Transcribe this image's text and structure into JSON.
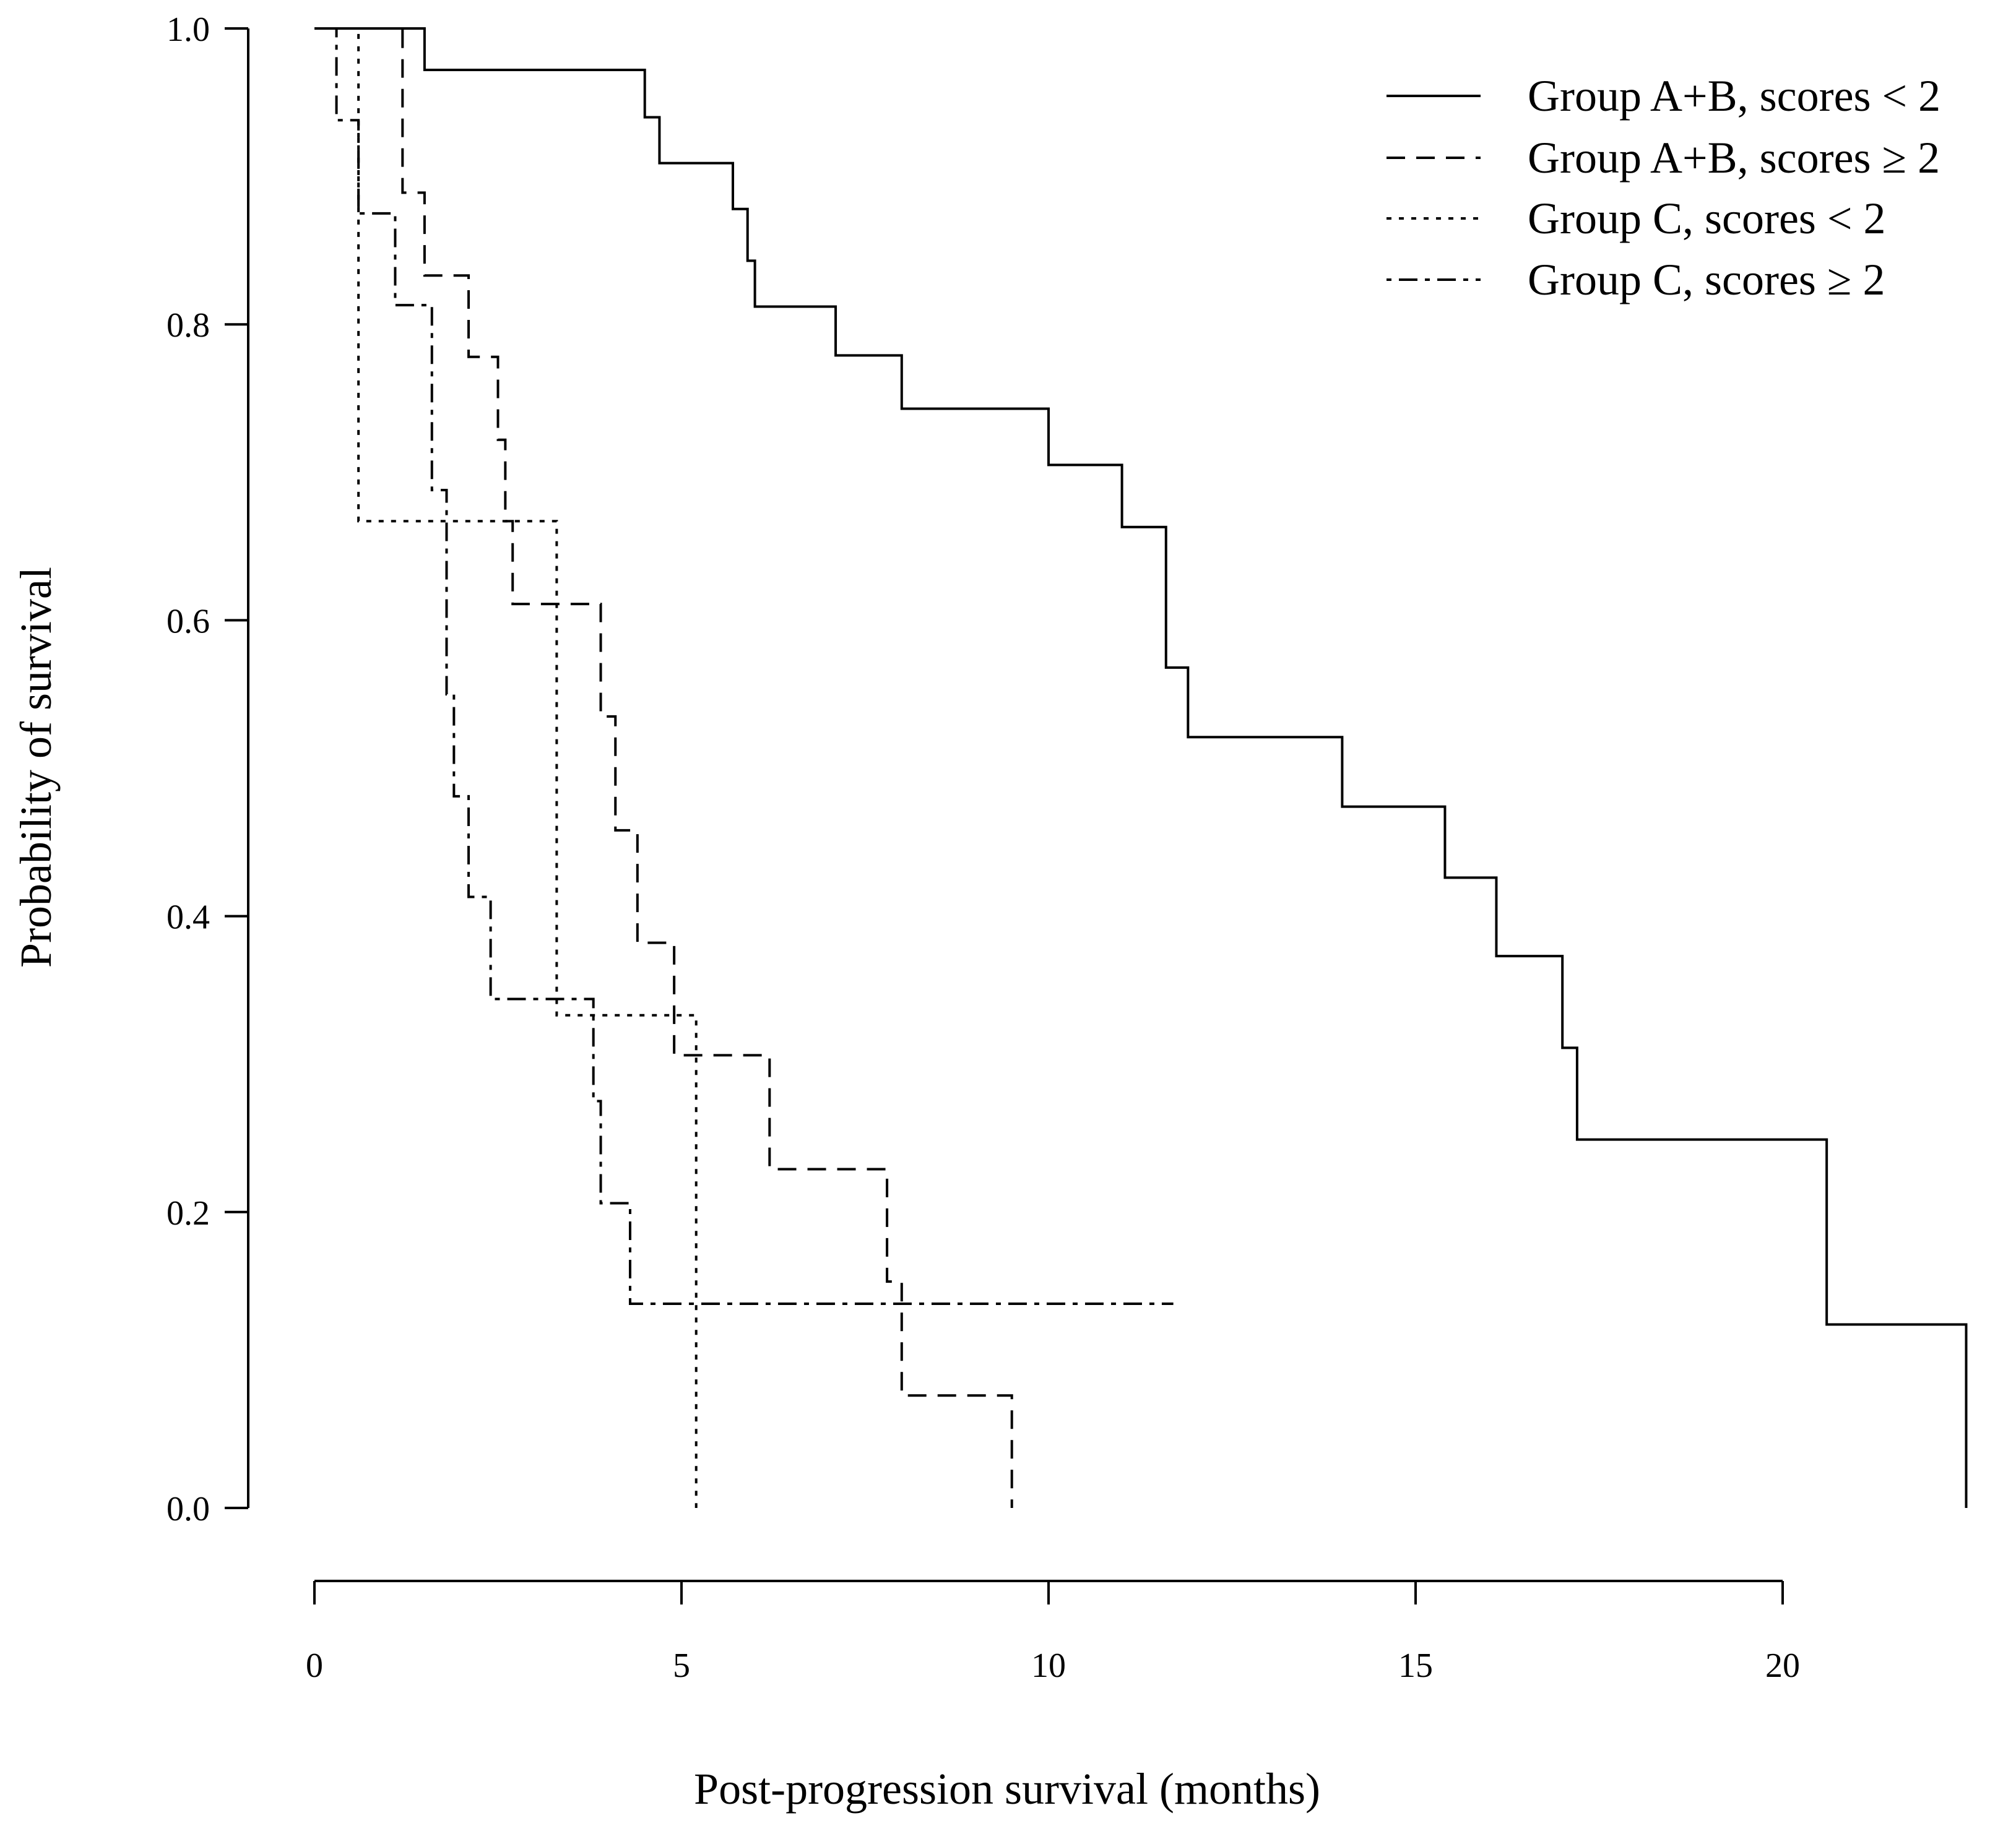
{
  "chart_data": {
    "type": "line",
    "subtype": "kaplan-meier step",
    "title": "",
    "xlabel": "Post-progression survival (months)",
    "ylabel": "Probability of survival",
    "xlim": [
      0,
      20
    ],
    "ylim": [
      0,
      1
    ],
    "x_ticks": [
      0,
      5,
      10,
      15,
      20
    ],
    "x_tick_labels": [
      "0",
      "5",
      "10",
      "15",
      "20"
    ],
    "y_ticks": [
      0,
      0.2,
      0.4,
      0.6,
      0.8,
      1.0
    ],
    "y_tick_labels": [
      "0.0",
      "0.2",
      "0.4",
      "0.6",
      "0.8",
      "1.0"
    ],
    "grid": false,
    "legend_position": "top-right",
    "colors": {
      "line": "#000000",
      "background": "#ffffff"
    },
    "series": [
      {
        "name": "Group A+B, scores < 2",
        "style": "solid",
        "steps": [
          [
            0,
            1.0
          ],
          [
            1.5,
            0.972
          ],
          [
            4.5,
            0.94
          ],
          [
            4.7,
            0.909
          ],
          [
            5.7,
            0.878
          ],
          [
            5.9,
            0.843
          ],
          [
            6.0,
            0.812
          ],
          [
            7.1,
            0.779
          ],
          [
            8.0,
            0.743
          ],
          [
            10.0,
            0.705
          ],
          [
            11.0,
            0.663
          ],
          [
            11.6,
            0.568
          ],
          [
            11.9,
            0.521
          ],
          [
            14.0,
            0.474
          ],
          [
            15.4,
            0.426
          ],
          [
            16.1,
            0.373
          ],
          [
            17.0,
            0.311
          ],
          [
            17.2,
            0.249
          ],
          [
            20.6,
            0.124
          ],
          [
            22.5,
            0.0
          ]
        ],
        "end_x": 22.5
      },
      {
        "name": "Group A+B, scores ≥ 2",
        "style": "dashed",
        "steps": [
          [
            0,
            1.0
          ],
          [
            1.2,
            0.889
          ],
          [
            1.5,
            0.833
          ],
          [
            2.1,
            0.778
          ],
          [
            2.5,
            0.722
          ],
          [
            2.6,
            0.667
          ],
          [
            2.7,
            0.611
          ],
          [
            3.9,
            0.535
          ],
          [
            4.1,
            0.458
          ],
          [
            4.4,
            0.382
          ],
          [
            4.9,
            0.306
          ],
          [
            6.2,
            0.229
          ],
          [
            7.8,
            0.153
          ],
          [
            8.0,
            0.076
          ],
          [
            9.5,
            0.0
          ]
        ],
        "end_x": 9.5
      },
      {
        "name": "Group C, scores < 2",
        "style": "dotted",
        "steps": [
          [
            0,
            1.0
          ],
          [
            0.6,
            0.667
          ],
          [
            3.3,
            0.333
          ],
          [
            5.2,
            0.0
          ]
        ],
        "end_x": 5.2
      },
      {
        "name": "Group C, scores ≥ 2",
        "style": "dash-dot",
        "steps": [
          [
            0,
            1.0
          ],
          [
            0.3,
            0.938
          ],
          [
            0.6,
            0.875
          ],
          [
            1.1,
            0.813
          ],
          [
            1.6,
            0.688
          ],
          [
            1.8,
            0.55
          ],
          [
            1.9,
            0.481
          ],
          [
            2.1,
            0.413
          ],
          [
            2.4,
            0.344
          ],
          [
            3.8,
            0.275
          ],
          [
            3.9,
            0.206
          ],
          [
            4.3,
            0.138
          ]
        ],
        "end_x": 11.7
      }
    ]
  }
}
